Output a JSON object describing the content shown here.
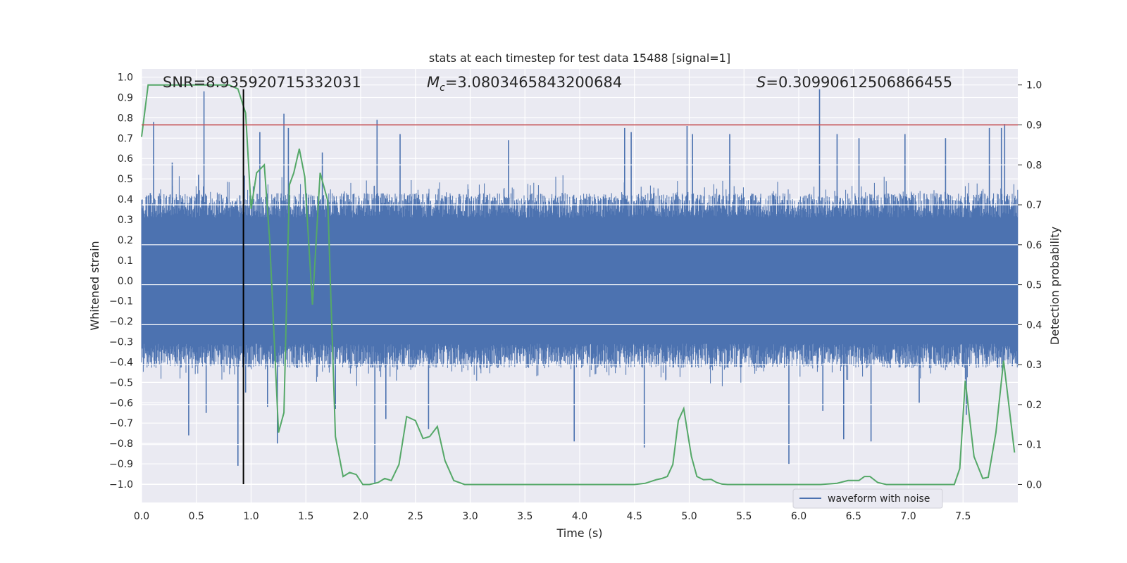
{
  "chart_data": {
    "type": "line",
    "title": "stats at each timestep for test data 15488 [signal=1]",
    "xlabel": "Time (s)",
    "ylabel_left": "Whitened strain",
    "ylabel_right": "Detection probability",
    "xlim": [
      0.0,
      8.0
    ],
    "ylim_left": [
      -1.09,
      1.04
    ],
    "ylim_right": [
      -0.045,
      1.04
    ],
    "x_ticks": [
      "0.0",
      "0.5",
      "1.0",
      "1.5",
      "2.0",
      "2.5",
      "3.0",
      "3.5",
      "4.0",
      "4.5",
      "5.0",
      "5.5",
      "6.0",
      "6.5",
      "7.0",
      "7.5"
    ],
    "y_ticks_left": [
      "1.0",
      "0.9",
      "0.8",
      "0.7",
      "0.6",
      "0.5",
      "0.4",
      "0.3",
      "0.2",
      "0.1",
      "0.0",
      "−0.1",
      "−0.2",
      "−0.3",
      "−0.4",
      "−0.5",
      "−0.6",
      "−0.7",
      "−0.8",
      "−0.9",
      "−1.0"
    ],
    "y_ticks_right": [
      "1.0",
      "0.9",
      "0.8",
      "0.7",
      "0.6",
      "0.5",
      "0.4",
      "0.3",
      "0.2",
      "0.1",
      "0.0"
    ],
    "grid": true,
    "legend": {
      "position": "lower-right",
      "entries": [
        "waveform with noise"
      ]
    },
    "annotations": {
      "snr": "SNR=8.935920715332031",
      "mc_symbol": "M",
      "mc_sub": "c",
      "mc_value": "=3.0803465843200684",
      "s_symbol": "S",
      "s_value": "=0.30990612506866455"
    },
    "threshold": {
      "value": 0.9,
      "axis": "right"
    },
    "marker_line": {
      "x": 0.93,
      "y_range": [
        -1.0,
        0.94
      ]
    },
    "waveform": {
      "name": "waveform with noise",
      "duration": 8.0,
      "core_amplitude": 0.43,
      "spikes": [
        [
          0.08,
          0.43
        ],
        [
          0.11,
          0.78
        ],
        [
          0.28,
          0.58
        ],
        [
          0.43,
          -0.76
        ],
        [
          0.52,
          0.52
        ],
        [
          0.57,
          0.93
        ],
        [
          0.59,
          -0.65
        ],
        [
          0.88,
          -0.91
        ],
        [
          0.95,
          -0.55
        ],
        [
          1.08,
          0.73
        ],
        [
          1.15,
          -0.62
        ],
        [
          1.24,
          -0.8
        ],
        [
          1.3,
          0.82
        ],
        [
          1.34,
          0.75
        ],
        [
          1.65,
          0.63
        ],
        [
          1.77,
          -0.63
        ],
        [
          2.15,
          0.79
        ],
        [
          2.13,
          -1.0
        ],
        [
          2.23,
          -0.68
        ],
        [
          2.36,
          0.72
        ],
        [
          2.62,
          -0.73
        ],
        [
          3.35,
          0.69
        ],
        [
          3.95,
          -0.79
        ],
        [
          4.41,
          0.75
        ],
        [
          4.47,
          0.73
        ],
        [
          4.59,
          -0.82
        ],
        [
          4.98,
          0.76
        ],
        [
          5.03,
          0.72
        ],
        [
          5.37,
          0.72
        ],
        [
          5.91,
          -0.9
        ],
        [
          6.19,
          0.94
        ],
        [
          6.22,
          -0.64
        ],
        [
          6.35,
          0.72
        ],
        [
          6.41,
          -0.78
        ],
        [
          6.66,
          -0.79
        ],
        [
          6.55,
          0.7
        ],
        [
          6.97,
          0.72
        ],
        [
          7.1,
          -0.6
        ],
        [
          7.34,
          0.7
        ],
        [
          7.53,
          -0.66
        ],
        [
          7.74,
          0.75
        ],
        [
          7.85,
          0.75
        ],
        [
          7.88,
          0.77
        ],
        [
          7.95,
          -0.42
        ]
      ]
    },
    "detection_probability": {
      "x": [
        0.0,
        0.06,
        0.1,
        0.2,
        0.3,
        0.4,
        0.5,
        0.6,
        0.7,
        0.8,
        0.88,
        0.95,
        1.0,
        1.05,
        1.12,
        1.17,
        1.25,
        1.3,
        1.35,
        1.39,
        1.44,
        1.49,
        1.56,
        1.63,
        1.7,
        1.77,
        1.84,
        1.9,
        1.96,
        2.02,
        2.08,
        2.16,
        2.22,
        2.28,
        2.35,
        2.42,
        2.5,
        2.57,
        2.63,
        2.7,
        2.77,
        2.85,
        2.95,
        3.1,
        3.3,
        3.5,
        3.7,
        3.9,
        4.1,
        4.3,
        4.5,
        4.6,
        4.7,
        4.75,
        4.8,
        4.85,
        4.9,
        4.95,
        5.02,
        5.07,
        5.13,
        5.2,
        5.25,
        5.3,
        5.35,
        5.4,
        5.5,
        5.6,
        5.8,
        6.0,
        6.2,
        6.35,
        6.45,
        6.55,
        6.6,
        6.65,
        6.72,
        6.8,
        6.9,
        7.0,
        7.1,
        7.2,
        7.3,
        7.35,
        7.42,
        7.47,
        7.52,
        7.6,
        7.68,
        7.73,
        7.8,
        7.87,
        7.97
      ],
      "y": [
        0.87,
        1.0,
        1.0,
        1.0,
        1.0,
        1.0,
        1.0,
        1.0,
        1.0,
        1.0,
        0.99,
        0.93,
        0.69,
        0.78,
        0.8,
        0.61,
        0.13,
        0.18,
        0.75,
        0.78,
        0.84,
        0.77,
        0.45,
        0.78,
        0.71,
        0.12,
        0.02,
        0.03,
        0.025,
        0.0,
        0.0,
        0.005,
        0.015,
        0.01,
        0.05,
        0.17,
        0.16,
        0.115,
        0.12,
        0.145,
        0.06,
        0.01,
        0.0,
        0.0,
        0.0,
        0.0,
        0.0,
        0.0,
        0.0,
        0.0,
        0.0,
        0.003,
        0.012,
        0.015,
        0.02,
        0.05,
        0.16,
        0.19,
        0.07,
        0.02,
        0.012,
        0.013,
        0.005,
        0.001,
        0.0,
        0.0,
        0.0,
        0.0,
        0.0,
        0.0,
        0.0,
        0.003,
        0.01,
        0.01,
        0.02,
        0.02,
        0.005,
        0.0,
        0.0,
        0.0,
        0.0,
        0.0,
        0.0,
        0.0,
        0.0,
        0.04,
        0.26,
        0.07,
        0.015,
        0.018,
        0.13,
        0.31,
        0.08
      ]
    }
  }
}
